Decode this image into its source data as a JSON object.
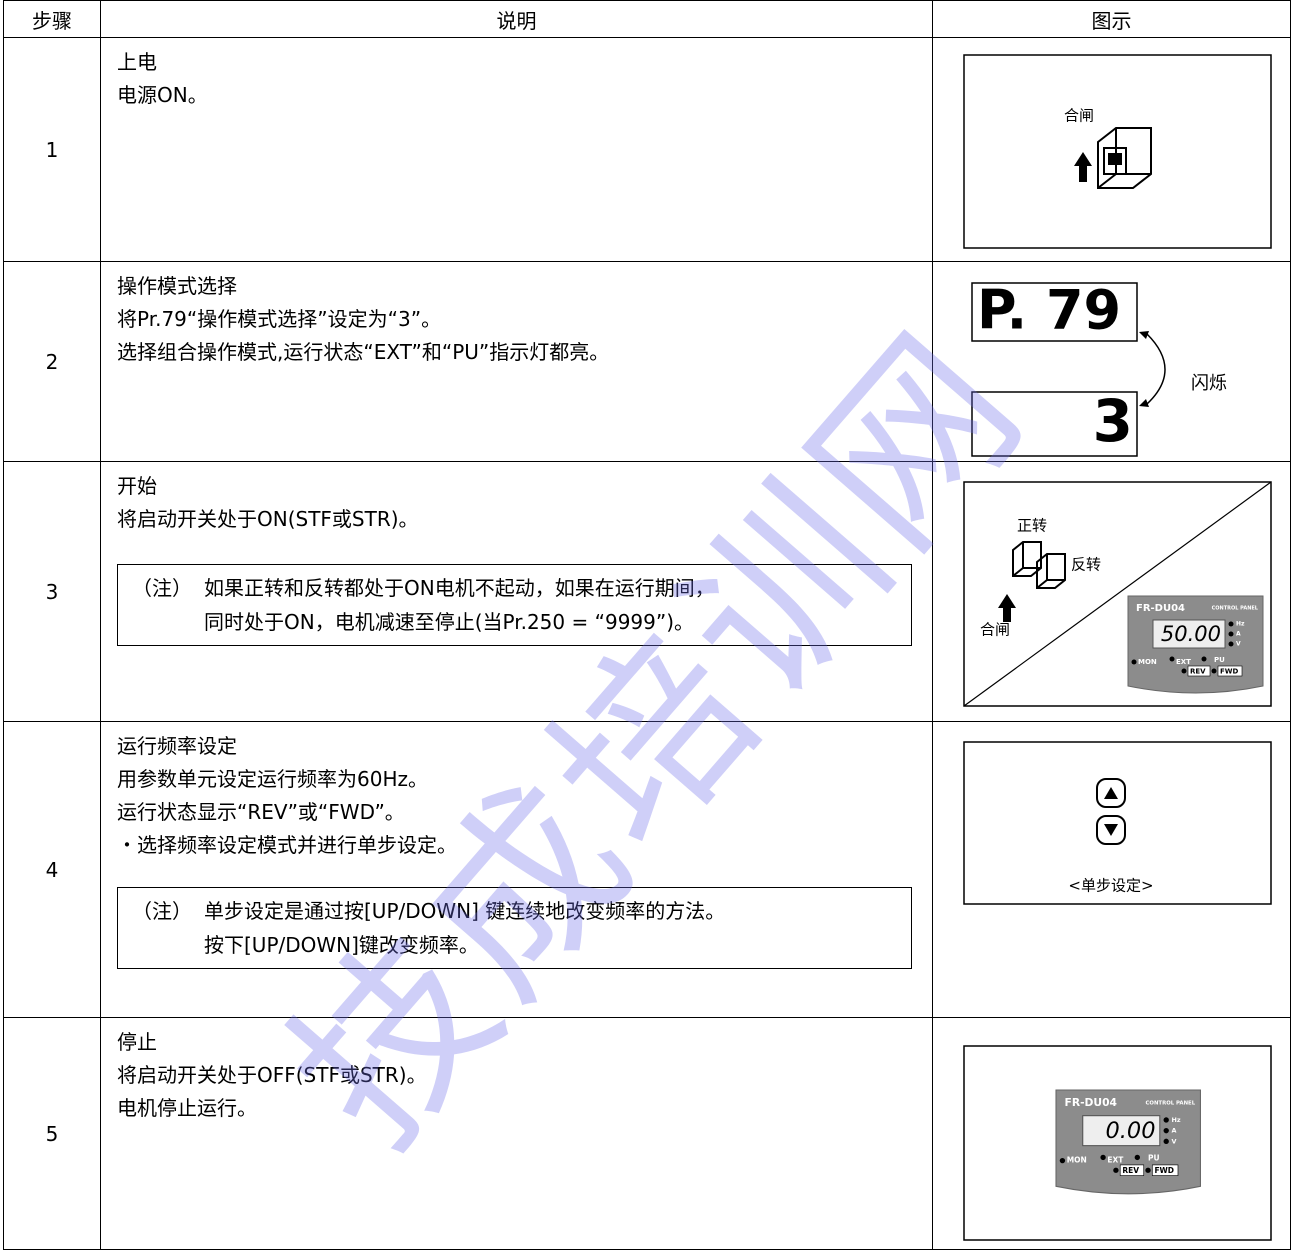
{
  "header": [
    "步骤",
    "说明",
    "图示"
  ],
  "rows": [
    {
      "step": "1",
      "lines": [
        "上电",
        "电源ON。"
      ],
      "figure": {
        "label": "合闸"
      }
    },
    {
      "step": "2",
      "lines": [
        "操作模式选择",
        "将Pr.79“操作模式选择”设定为“3”。",
        "选择组合操作模式,运行状态“EXT”和“PU”指示灯都亮。"
      ],
      "figure": {
        "display_top": "P. 79",
        "display_bottom": "3",
        "label": "闪烁"
      }
    },
    {
      "step": "3",
      "lines": [
        "开始",
        "将启动开关处于ON(STF或STR)。"
      ],
      "note": {
        "tag": "（注）",
        "lines": [
          "如果正转和反转都处于ON电机不起动，如果在运行期间，",
          "同时处于ON，电机减速至停止(当Pr.250 = “9999”)。"
        ]
      },
      "figure": {
        "forward": "正转",
        "reverse": "反转",
        "label": "合闸",
        "panel": {
          "model": "FR-DU04",
          "caption": "CONTROL PANEL",
          "display": "50.00",
          "units": [
            "Hz",
            "A",
            "V"
          ],
          "indicators": [
            "MON",
            "EXT",
            "PU",
            "REV",
            "FWD"
          ]
        }
      }
    },
    {
      "step": "4",
      "lines": [
        "运行频率设定",
        "用参数单元设定运行频率为60Hz。",
        "运行状态显示“REV”或“FWD”。",
        "・选择频率设定模式并进行单步设定。"
      ],
      "note": {
        "tag": "（注）",
        "lines": [
          "单步设定是通过按[UP/DOWN] 键连续地改变频率的方法。",
          "按下[UP/DOWN]键改变频率。"
        ]
      },
      "figure": {
        "label": "<单步设定>"
      }
    },
    {
      "step": "5",
      "lines": [
        "停止",
        "将启动开关处于OFF(STF或STR)。",
        "电机停止运行。"
      ],
      "figure": {
        "panel": {
          "model": "FR-DU04",
          "caption": "CONTROL PANEL",
          "display": "0.00",
          "units": [
            "Hz",
            "A",
            "V"
          ],
          "indicators": [
            "MON",
            "EXT",
            "PU",
            "REV",
            "FWD"
          ]
        }
      }
    }
  ],
  "watermark": "技成培训网"
}
